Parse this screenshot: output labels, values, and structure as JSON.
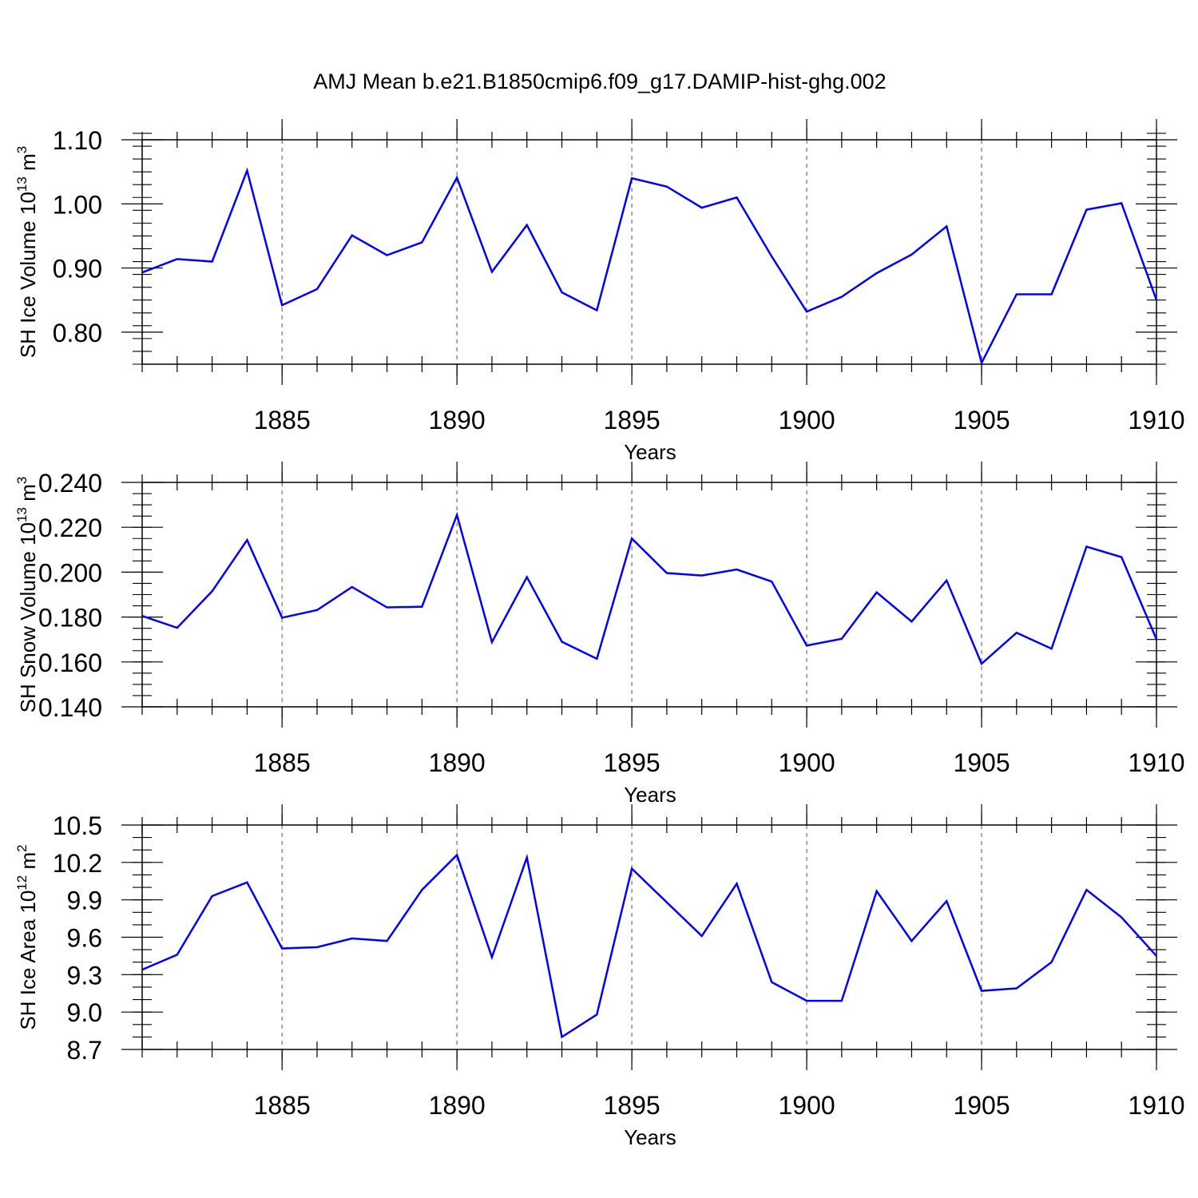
{
  "title": "AMJ Mean b.e21.B1850cmip6.f09_g17.DAMIP-hist-ghg.002",
  "chart_data": [
    {
      "type": "line",
      "ylabel": {
        "text": "SH Ice Volume 10",
        "sup": "13",
        "unit": " m",
        "unit_sup": "3"
      },
      "xlabel": "Years",
      "xlim": [
        1881,
        1910
      ],
      "ylim": [
        0.75,
        1.1
      ],
      "xticks": [
        1885,
        1890,
        1895,
        1900,
        1905,
        1910
      ],
      "yticks": [
        0.8,
        0.9,
        1.0,
        1.1
      ],
      "ytick_labels": [
        "0.80",
        "0.90",
        "1.00",
        "1.10"
      ],
      "ytick_minor_step": 0.02,
      "grid": "dashed vertical lines at major x ticks",
      "line_color": "#0000ff",
      "series": [
        {
          "name": "SH Ice Volume",
          "x": [
            1881,
            1882,
            1883,
            1884,
            1885,
            1886,
            1887,
            1888,
            1889,
            1890,
            1891,
            1892,
            1893,
            1894,
            1895,
            1896,
            1897,
            1898,
            1899,
            1900,
            1901,
            1902,
            1903,
            1904,
            1905,
            1906,
            1907,
            1908,
            1909,
            1910
          ],
          "values": [
            0.893,
            0.914,
            0.91,
            1.052,
            0.842,
            0.867,
            0.951,
            0.92,
            0.94,
            1.041,
            0.894,
            0.967,
            0.862,
            0.834,
            1.04,
            1.027,
            0.994,
            1.01,
            0.918,
            0.832,
            0.855,
            0.892,
            0.921,
            0.965,
            0.752,
            0.859,
            0.859,
            0.991,
            1.001,
            0.85
          ]
        }
      ]
    },
    {
      "type": "line",
      "ylabel": {
        "text": "SH Snow Volume 10",
        "sup": "13",
        "unit": " m",
        "unit_sup": "3"
      },
      "xlabel": "Years",
      "xlim": [
        1881,
        1910
      ],
      "ylim": [
        0.14,
        0.24
      ],
      "xticks": [
        1885,
        1890,
        1895,
        1900,
        1905,
        1910
      ],
      "yticks": [
        0.14,
        0.16,
        0.18,
        0.2,
        0.22,
        0.24
      ],
      "ytick_labels": [
        "0.140",
        "0.160",
        "0.180",
        "0.200",
        "0.220",
        "0.240"
      ],
      "ytick_minor_step": 0.005,
      "grid": "dashed vertical lines at major x ticks",
      "line_color": "#0000ff",
      "series": [
        {
          "name": "SH Snow Volume",
          "x": [
            1881,
            1882,
            1883,
            1884,
            1885,
            1886,
            1887,
            1888,
            1889,
            1890,
            1891,
            1892,
            1893,
            1894,
            1895,
            1896,
            1897,
            1898,
            1899,
            1900,
            1901,
            1902,
            1903,
            1904,
            1905,
            1906,
            1907,
            1908,
            1909,
            1910
          ],
          "values": [
            0.1805,
            0.1752,
            0.1915,
            0.2143,
            0.1797,
            0.1831,
            0.1934,
            0.1843,
            0.1846,
            0.2255,
            0.1688,
            0.1978,
            0.169,
            0.1614,
            0.215,
            0.1996,
            0.1985,
            0.2012,
            0.1958,
            0.1673,
            0.1703,
            0.191,
            0.178,
            0.1963,
            0.1592,
            0.173,
            0.1659,
            0.2114,
            0.2067,
            0.1701
          ]
        }
      ]
    },
    {
      "type": "line",
      "ylabel": {
        "text": "SH Ice Area 10",
        "sup": "12",
        "unit": " m",
        "unit_sup": "2"
      },
      "xlabel": "Years",
      "xlim": [
        1881,
        1910
      ],
      "ylim": [
        8.7,
        10.5
      ],
      "xticks": [
        1885,
        1890,
        1895,
        1900,
        1905,
        1910
      ],
      "yticks": [
        8.7,
        9.0,
        9.3,
        9.6,
        9.9,
        10.2,
        10.5
      ],
      "ytick_labels": [
        "8.7",
        "9.0",
        "9.3",
        "9.6",
        "9.9",
        "10.2",
        "10.5"
      ],
      "ytick_minor_step": 0.1,
      "grid": "dashed vertical lines at major x ticks",
      "line_color": "#0000ff",
      "series": [
        {
          "name": "SH Ice Area",
          "x": [
            1881,
            1882,
            1883,
            1884,
            1885,
            1886,
            1887,
            1888,
            1889,
            1890,
            1891,
            1892,
            1893,
            1894,
            1895,
            1896,
            1897,
            1898,
            1899,
            1900,
            1901,
            1902,
            1903,
            1904,
            1905,
            1906,
            1907,
            1908,
            1909,
            1910
          ],
          "values": [
            9.34,
            9.46,
            9.93,
            10.04,
            9.51,
            9.52,
            9.59,
            9.57,
            9.98,
            10.26,
            9.44,
            10.24,
            8.8,
            8.98,
            10.15,
            9.88,
            9.61,
            10.03,
            9.24,
            9.09,
            9.09,
            9.97,
            9.57,
            9.89,
            9.17,
            9.19,
            9.4,
            9.98,
            9.76,
            9.45
          ]
        }
      ]
    }
  ]
}
